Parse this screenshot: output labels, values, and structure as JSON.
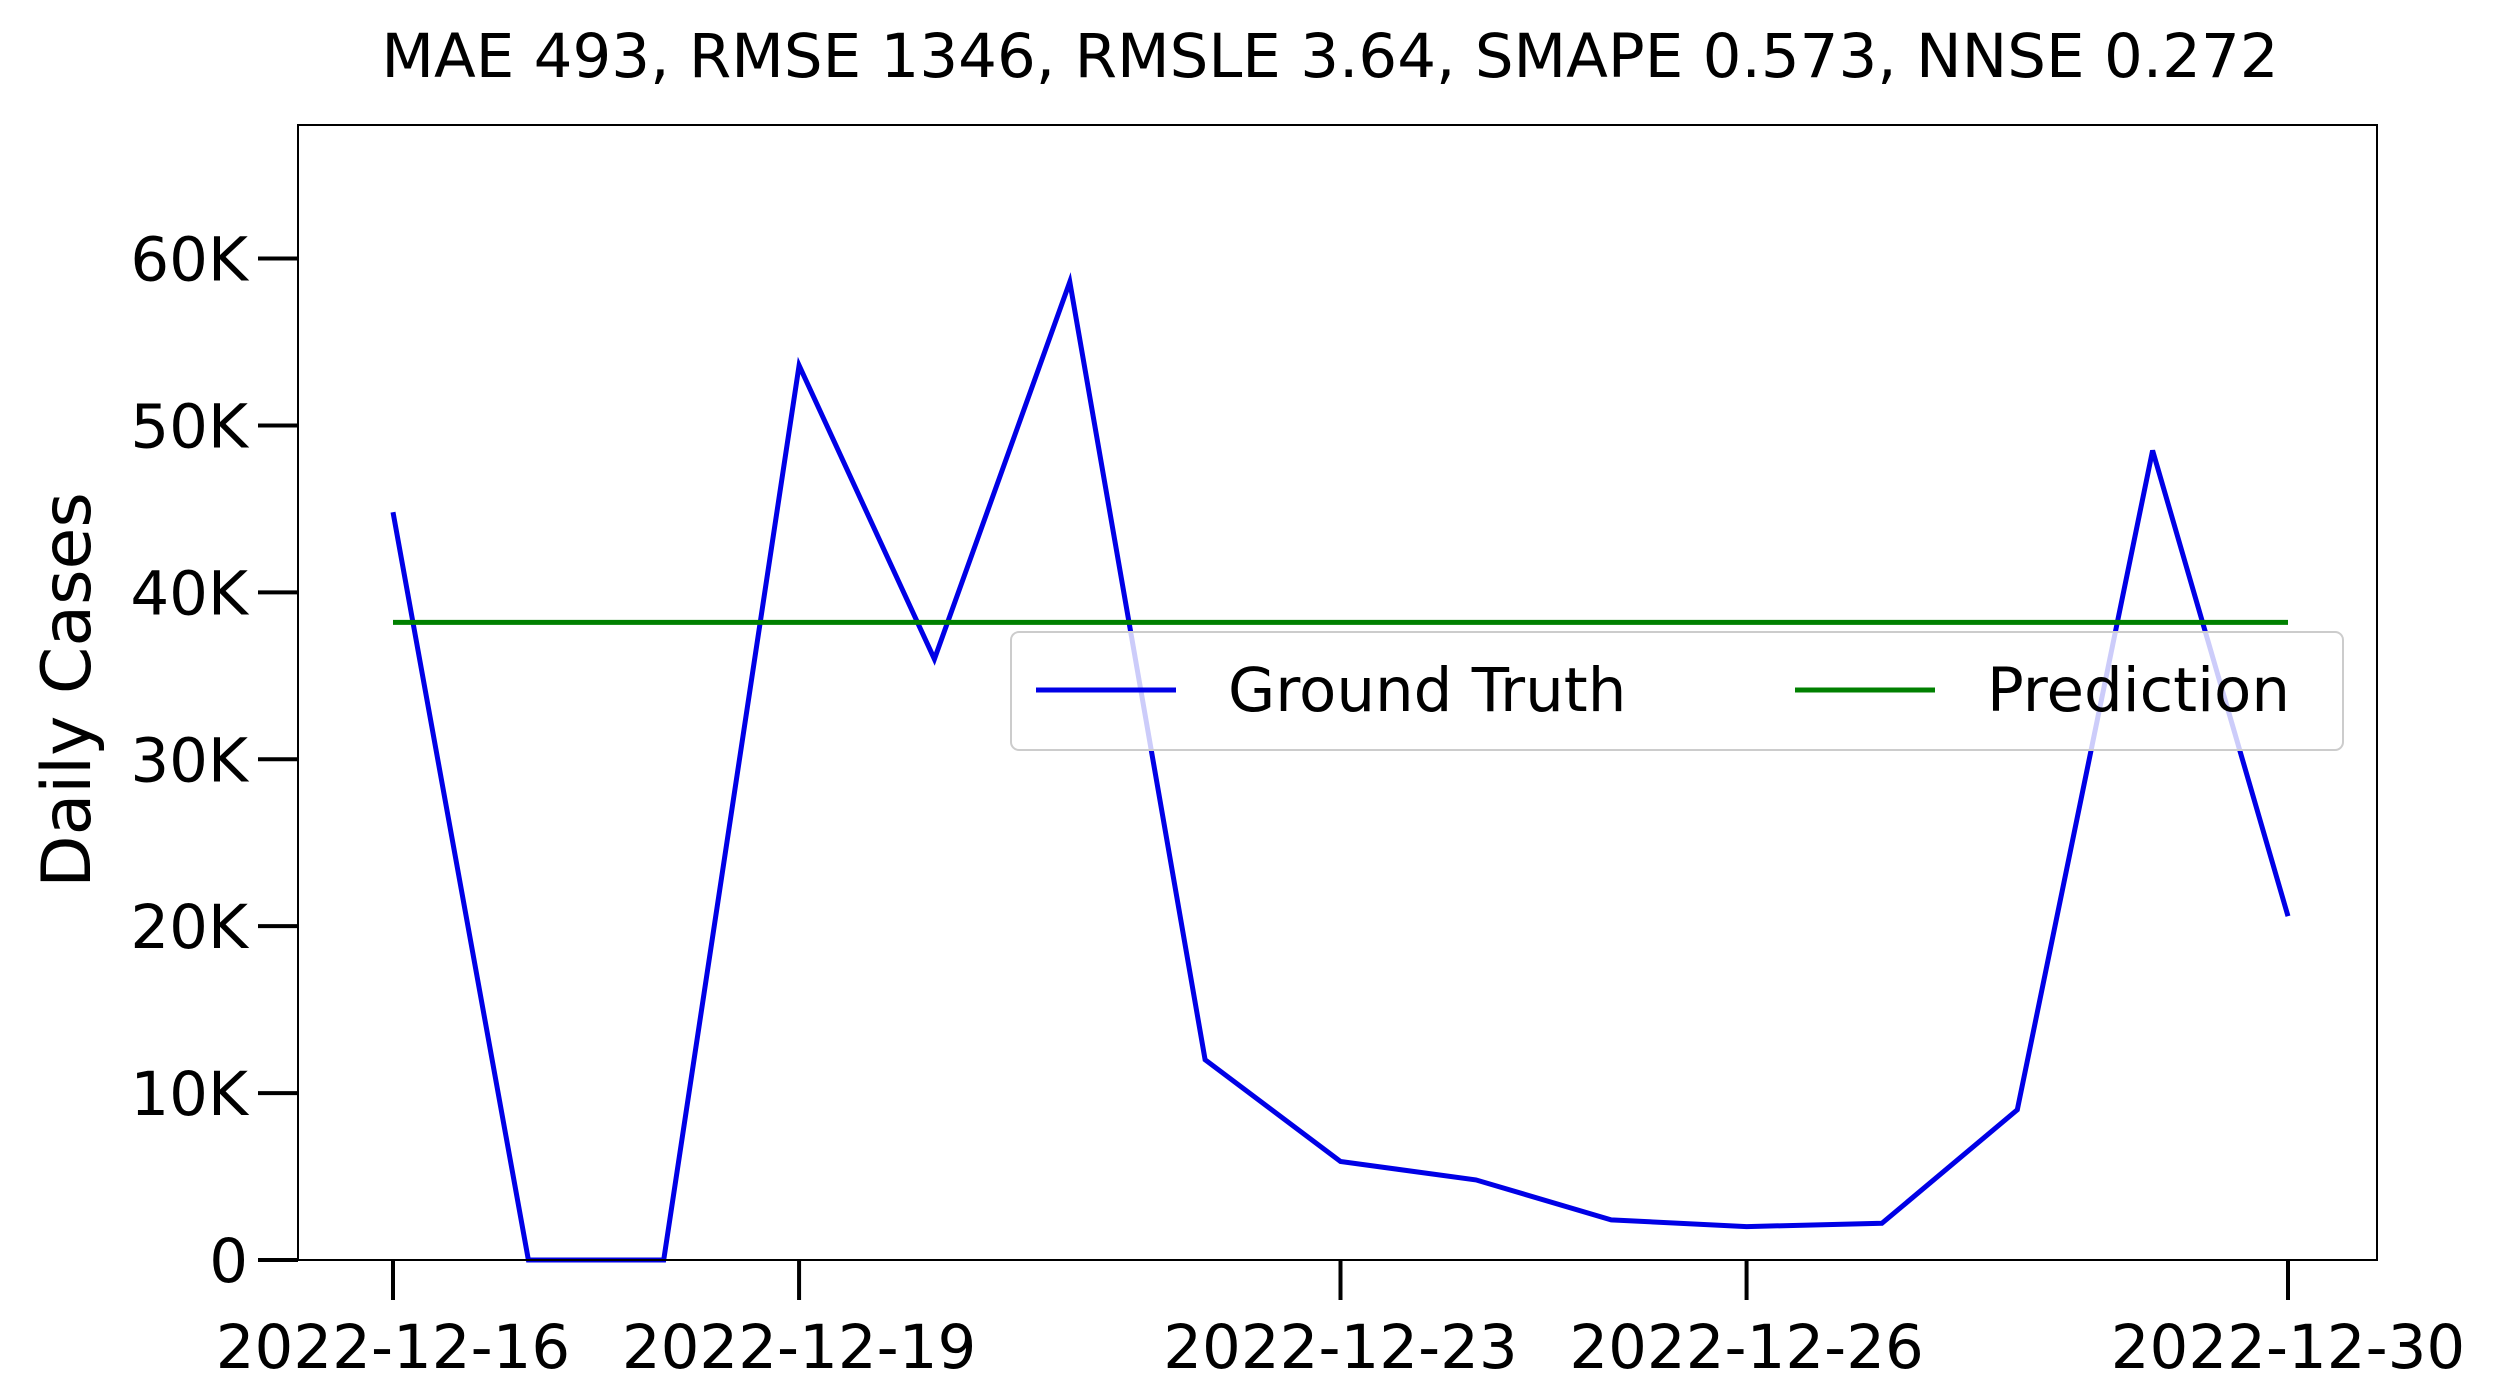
{
  "chart_data": {
    "type": "line",
    "title": "MAE 493, RMSE 1346, RMSLE 3.64, SMAPE 0.573, NNSE 0.272",
    "xlabel": "",
    "ylabel": "Daily Cases",
    "x": [
      "2022-12-16",
      "2022-12-17",
      "2022-12-18",
      "2022-12-19",
      "2022-12-20",
      "2022-12-21",
      "2022-12-22",
      "2022-12-23",
      "2022-12-24",
      "2022-12-25",
      "2022-12-26",
      "2022-12-27",
      "2022-12-28",
      "2022-12-29",
      "2022-12-30"
    ],
    "x_ticks": [
      "2022-12-16",
      "2022-12-19",
      "2022-12-23",
      "2022-12-26",
      "2022-12-30"
    ],
    "ylim": [
      0,
      68000
    ],
    "y_ticks": [
      0,
      10000,
      20000,
      30000,
      40000,
      50000,
      60000
    ],
    "y_tick_labels": [
      "0",
      "10K",
      "20K",
      "30K",
      "40K",
      "50K",
      "60K"
    ],
    "grid": false,
    "legend_position": "center-right",
    "series": [
      {
        "name": "Ground Truth",
        "color": "#0000e6",
        "values": [
          44800,
          0,
          0,
          53600,
          36000,
          58600,
          12000,
          5900,
          4800,
          2400,
          2000,
          2200,
          9000,
          48500,
          20600
        ]
      },
      {
        "name": "Prediction",
        "color": "#008000",
        "values": [
          38200,
          38200,
          38200,
          38200,
          38200,
          38200,
          38200,
          38200,
          38200,
          38200,
          38200,
          38200,
          38200,
          38200,
          38200
        ]
      }
    ]
  }
}
